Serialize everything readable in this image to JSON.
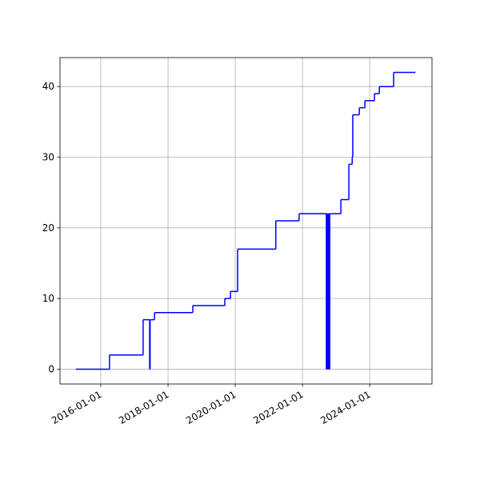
{
  "chart_data": {
    "type": "line",
    "drawstyle": "steps-post",
    "color": "#0000ff",
    "grid": true,
    "x": [
      "2015-04-05",
      "2016-04-05",
      "2017-04-05",
      "2017-06-15",
      "2017-06-20",
      "2017-08-07",
      "2018-09-27",
      "2019-09-10",
      "2019-11-10",
      "2020-01-27",
      "2021-03-17",
      "2021-11-25",
      "2022-09-17",
      "2022-09-20",
      "2022-09-28",
      "2022-10-01",
      "2022-10-09",
      "2022-10-12",
      "2022-10-20",
      "2022-10-24",
      "2023-02-22",
      "2023-05-20",
      "2023-06-25",
      "2023-07-01",
      "2023-09-10",
      "2023-11-10",
      "2024-02-22",
      "2024-04-15",
      "2024-09-17",
      "2025-05-12"
    ],
    "values": [
      0,
      2,
      7,
      0,
      7,
      8,
      9,
      10,
      11,
      17,
      21,
      22,
      0,
      22,
      0,
      22,
      0,
      22,
      0,
      22,
      24,
      29,
      30,
      36,
      37,
      38,
      39,
      40,
      42,
      42
    ],
    "xlim": [
      "2014-10-15",
      "2025-11-08"
    ],
    "xticks": [
      "2016-01-01",
      "2018-01-01",
      "2020-01-01",
      "2022-01-01",
      "2024-01-01"
    ],
    "ylim": [
      -2.1,
      44.1
    ],
    "yticks": [
      0,
      10,
      20,
      30,
      40
    ]
  }
}
